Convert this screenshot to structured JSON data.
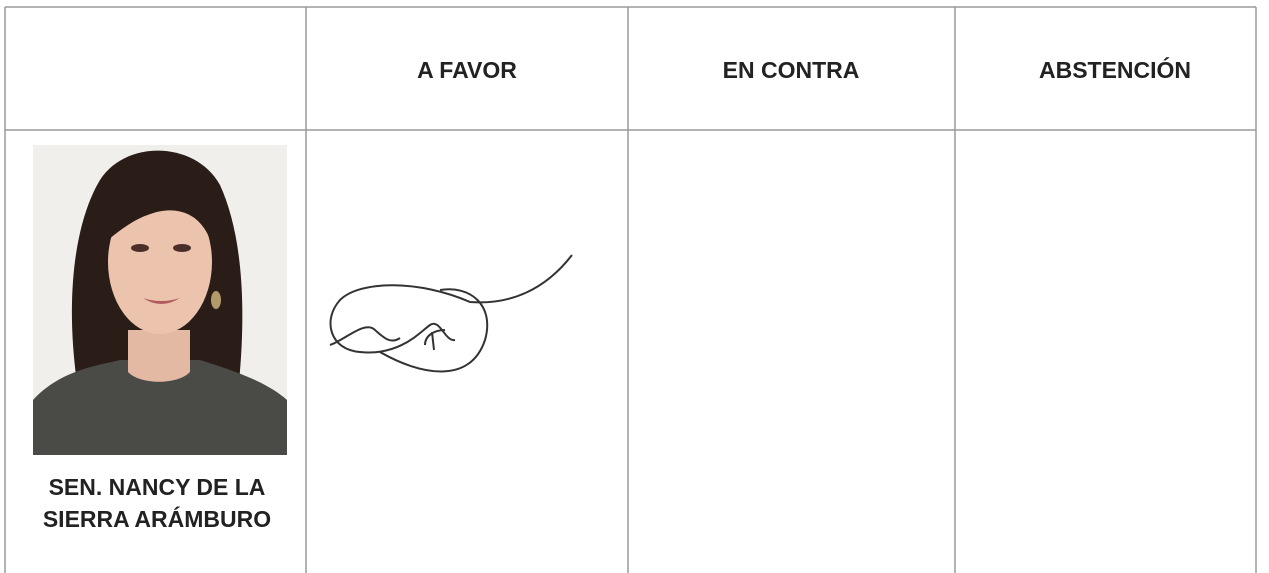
{
  "table": {
    "header": [
      "A FAVOR",
      "EN CONTRA",
      "ABSTENCIÓN"
    ],
    "rows": [
      {
        "name_lines": [
          "SEN. NANCY DE LA",
          "SIERRA ARÁMBURO"
        ]
      }
    ]
  }
}
